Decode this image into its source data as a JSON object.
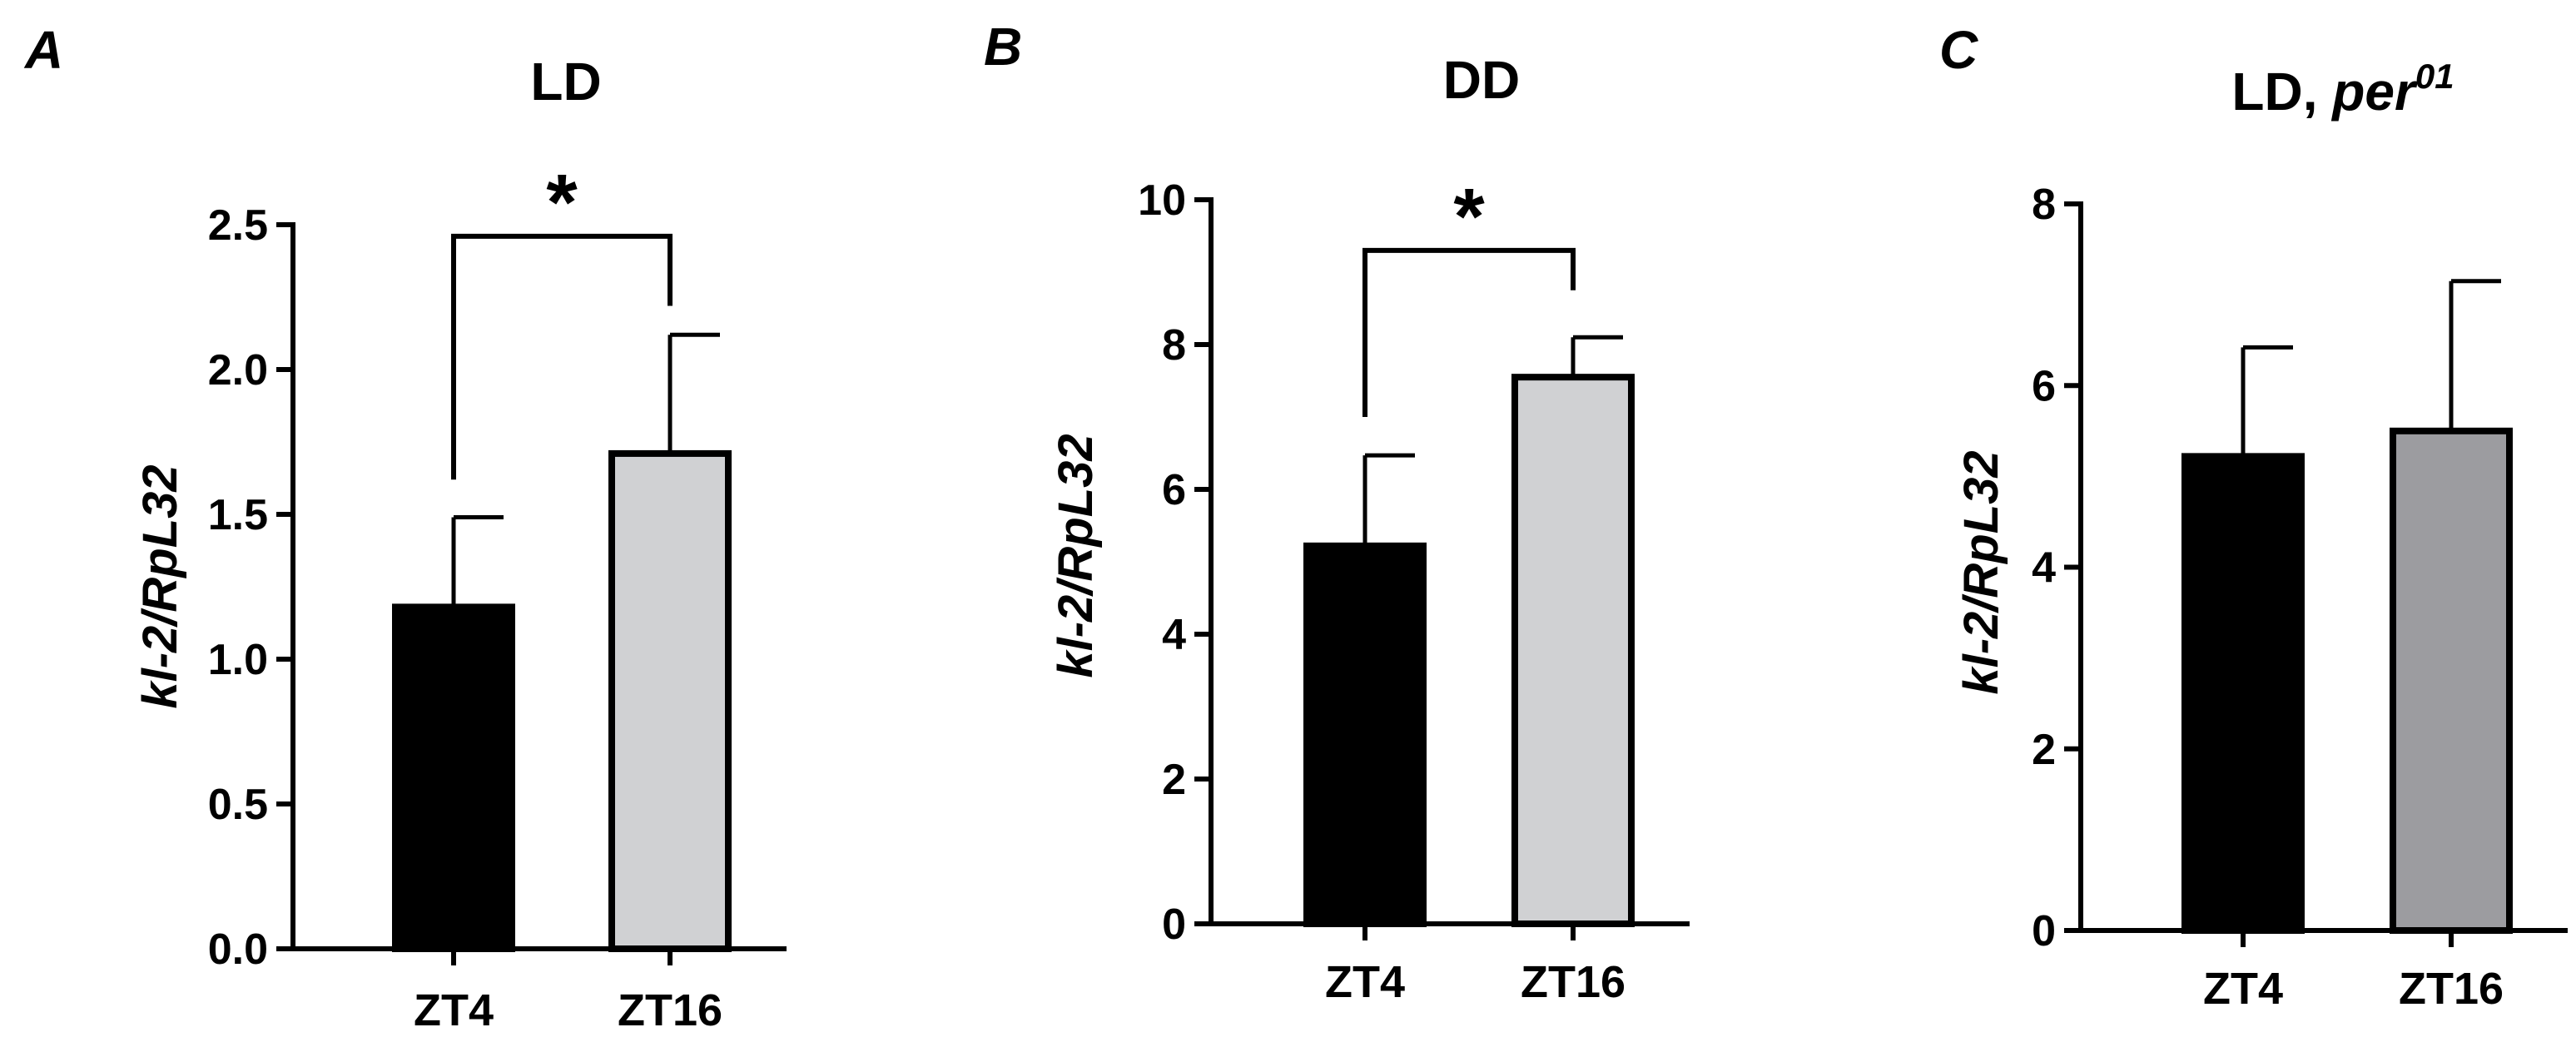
{
  "chart_data": [
    {
      "type": "bar",
      "panel": "A",
      "title": "LD",
      "title_sup": "",
      "ylabel": "kl-2/RpL32",
      "categories": [
        "ZT4",
        "ZT16"
      ],
      "values": [
        1.18,
        1.71
      ],
      "errors": [
        0.31,
        0.41
      ],
      "bar_colors": [
        "#000000",
        "#d0d1d3"
      ],
      "ylim": [
        0,
        2.5
      ],
      "yticks": [
        0,
        0.5,
        1.0,
        1.5,
        2.0,
        2.5
      ],
      "ytick_labels": [
        "0.0",
        "0.5",
        "1.0",
        "1.5",
        "2.0",
        "2.5"
      ],
      "significance": {
        "label": "*",
        "bracket_y": 2.46,
        "left_y": 1.62,
        "right_y": 2.22
      }
    },
    {
      "type": "bar",
      "panel": "B",
      "title": "DD",
      "title_sup": "",
      "ylabel": "kl-2/RpL32",
      "categories": [
        "ZT4",
        "ZT16"
      ],
      "values": [
        5.22,
        7.55
      ],
      "errors": [
        1.25,
        0.55
      ],
      "bar_colors": [
        "#000000",
        "#d0d1d3"
      ],
      "ylim": [
        0,
        10
      ],
      "yticks": [
        0,
        2,
        4,
        6,
        8,
        10
      ],
      "ytick_labels": [
        "0",
        "2",
        "4",
        "6",
        "8",
        "10"
      ],
      "significance": {
        "label": "*",
        "bracket_y": 9.3,
        "left_y": 7.0,
        "right_y": 8.75
      }
    },
    {
      "type": "bar",
      "panel": "C",
      "title": "LD, ",
      "title_italic": "per",
      "title_sup": "01",
      "ylabel": "kl-2/RpL32",
      "categories": [
        "ZT4",
        "ZT16"
      ],
      "values": [
        5.22,
        5.5
      ],
      "errors": [
        1.2,
        1.65
      ],
      "bar_colors": [
        "#000000",
        "#9c9ca0"
      ],
      "ylim": [
        0,
        8
      ],
      "yticks": [
        0,
        2,
        4,
        6,
        8
      ],
      "ytick_labels": [
        "0",
        "2",
        "4",
        "6",
        "8"
      ],
      "significance": null
    }
  ]
}
